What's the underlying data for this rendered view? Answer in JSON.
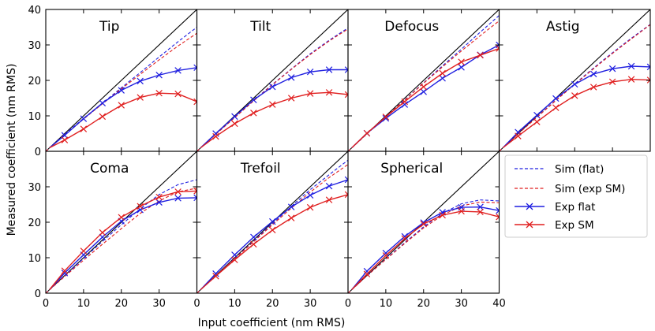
{
  "figure": {
    "xlabel": "Input coefficient (nm RMS)",
    "ylabel": "Measured coefficient (nm RMS)"
  },
  "legend": {
    "placement": "lower-right",
    "entries": [
      {
        "key": "sim_flat",
        "label": "Sim (flat)",
        "color": "#1f1fe0",
        "style": "dashed"
      },
      {
        "key": "sim_sm",
        "label": "Sim (exp SM)",
        "color": "#e01f1f",
        "style": "dashed"
      },
      {
        "key": "exp_flat",
        "label": "Exp flat",
        "color": "#1f1fe0",
        "style": "solid-x"
      },
      {
        "key": "exp_sm",
        "label": "Exp SM",
        "color": "#e01f1f",
        "style": "solid-x"
      }
    ]
  },
  "colors": {
    "blue": "#1f1fe0",
    "red": "#e01f1f",
    "ideal": "#000000"
  },
  "chart_data": [
    {
      "type": "line",
      "title": "Tip",
      "xlim": [
        0,
        40
      ],
      "ylim": [
        0,
        40
      ],
      "xticks": [
        0,
        10,
        20,
        30
      ],
      "yticks": [
        0,
        10,
        20,
        30,
        40
      ],
      "show_xticklabels": false,
      "show_yticklabels": true,
      "series": [
        {
          "name": "Sim (flat)",
          "key": "sim_flat",
          "x": [
            0,
            5,
            10,
            15,
            20,
            25,
            30,
            35,
            40
          ],
          "y": [
            0,
            4.8,
            9.3,
            13.6,
            17.9,
            22.2,
            26.6,
            30.9,
            35.0
          ]
        },
        {
          "name": "Sim (exp SM)",
          "key": "sim_sm",
          "x": [
            0,
            5,
            10,
            15,
            20,
            25,
            30,
            35,
            40
          ],
          "y": [
            0,
            4.6,
            9.1,
            13.4,
            17.6,
            21.7,
            25.8,
            29.7,
            33.3
          ]
        },
        {
          "name": "Exp flat",
          "key": "exp_flat",
          "x": [
            1,
            5,
            10,
            15,
            20,
            25,
            30,
            35,
            40
          ],
          "y": [
            1,
            4.5,
            9.2,
            13.6,
            17.2,
            19.8,
            21.5,
            22.8,
            23.6
          ]
        },
        {
          "name": "Exp SM",
          "key": "exp_sm",
          "x": [
            1,
            5,
            10,
            15,
            20,
            25,
            30,
            35,
            40
          ],
          "y": [
            1,
            3.2,
            6.3,
            9.8,
            13.0,
            15.2,
            16.4,
            16.2,
            14.0
          ]
        }
      ]
    },
    {
      "type": "line",
      "title": "Tilt",
      "xlim": [
        0,
        40
      ],
      "ylim": [
        0,
        40
      ],
      "xticks": [
        0,
        10,
        20,
        30
      ],
      "yticks": [
        0,
        10,
        20,
        30,
        40
      ],
      "show_xticklabels": false,
      "show_yticklabels": false,
      "series": [
        {
          "name": "Sim (flat)",
          "key": "sim_flat",
          "x": [
            0,
            5,
            10,
            15,
            20,
            25,
            30,
            35,
            40
          ],
          "y": [
            0,
            4.9,
            9.6,
            14.3,
            18.9,
            23.2,
            27.5,
            31.3,
            34.8
          ]
        },
        {
          "name": "Sim (exp SM)",
          "key": "sim_sm",
          "x": [
            0,
            5,
            10,
            15,
            20,
            25,
            30,
            35,
            40
          ],
          "y": [
            0,
            4.8,
            9.5,
            14.2,
            18.8,
            23.1,
            27.3,
            31.1,
            34.5
          ]
        },
        {
          "name": "Exp flat",
          "key": "exp_flat",
          "x": [
            1,
            5,
            10,
            15,
            20,
            25,
            30,
            35,
            40
          ],
          "y": [
            1,
            5.0,
            9.8,
            14.5,
            18.2,
            20.8,
            22.4,
            23.0,
            23.0
          ]
        },
        {
          "name": "Exp SM",
          "key": "exp_sm",
          "x": [
            1,
            5,
            10,
            15,
            20,
            25,
            30,
            35,
            40
          ],
          "y": [
            1,
            4.2,
            7.8,
            10.8,
            13.2,
            15.0,
            16.3,
            16.6,
            16.0
          ]
        }
      ]
    },
    {
      "type": "line",
      "title": "Defocus",
      "xlim": [
        0,
        40
      ],
      "ylim": [
        0,
        40
      ],
      "xticks": [
        0,
        10,
        20,
        30
      ],
      "yticks": [
        0,
        10,
        20,
        30,
        40
      ],
      "show_xticklabels": false,
      "show_yticklabels": false,
      "series": [
        {
          "name": "Sim (flat)",
          "key": "sim_flat",
          "x": [
            0,
            5,
            10,
            15,
            20,
            25,
            30,
            35,
            40
          ],
          "y": [
            0,
            4.9,
            9.8,
            14.5,
            19.3,
            24.1,
            28.8,
            33.6,
            38.3
          ]
        },
        {
          "name": "Sim (exp SM)",
          "key": "sim_sm",
          "x": [
            0,
            5,
            10,
            15,
            20,
            25,
            30,
            35,
            40
          ],
          "y": [
            0,
            4.9,
            9.8,
            14.4,
            19.2,
            23.8,
            28.3,
            32.6,
            36.8
          ]
        },
        {
          "name": "Exp flat",
          "key": "exp_flat",
          "x": [
            1,
            5,
            10,
            15,
            20,
            25,
            30,
            35,
            40
          ],
          "y": [
            1,
            5.1,
            9.3,
            13.2,
            16.8,
            20.6,
            23.7,
            27.2,
            30.0
          ]
        },
        {
          "name": "Exp SM",
          "key": "exp_sm",
          "x": [
            1,
            5,
            10,
            15,
            20,
            25,
            30,
            35,
            40
          ],
          "y": [
            1,
            5.1,
            9.7,
            14.0,
            18.2,
            22.0,
            25.2,
            27.1,
            29.0
          ]
        }
      ]
    },
    {
      "type": "line",
      "title": "Astig",
      "xlim": [
        0,
        40
      ],
      "ylim": [
        0,
        40
      ],
      "xticks": [
        0,
        10,
        20,
        30
      ],
      "yticks": [
        0,
        10,
        20,
        30,
        40
      ],
      "show_xticklabels": false,
      "show_yticklabels": false,
      "series": [
        {
          "name": "Sim (flat)",
          "key": "sim_flat",
          "x": [
            0,
            5,
            10,
            15,
            20,
            25,
            30,
            35,
            40
          ],
          "y": [
            0,
            4.9,
            9.7,
            14.4,
            19.0,
            23.5,
            27.8,
            31.9,
            35.8
          ]
        },
        {
          "name": "Sim (exp SM)",
          "key": "sim_sm",
          "x": [
            0,
            5,
            10,
            15,
            20,
            25,
            30,
            35,
            40
          ],
          "y": [
            0,
            4.9,
            9.6,
            14.3,
            18.9,
            23.3,
            27.6,
            31.7,
            35.7
          ]
        },
        {
          "name": "Exp flat",
          "key": "exp_flat",
          "x": [
            1,
            5,
            10,
            15,
            20,
            25,
            30,
            35,
            40
          ],
          "y": [
            1,
            5.4,
            10.2,
            14.9,
            18.9,
            21.8,
            23.3,
            24.0,
            23.8
          ]
        },
        {
          "name": "Exp SM",
          "key": "exp_sm",
          "x": [
            1,
            5,
            10,
            15,
            20,
            25,
            30,
            35,
            40
          ],
          "y": [
            1,
            4.3,
            8.3,
            12.3,
            15.7,
            18.1,
            19.6,
            20.3,
            20.1
          ]
        }
      ]
    },
    {
      "type": "line",
      "title": "Coma",
      "xlim": [
        0,
        40
      ],
      "ylim": [
        0,
        40
      ],
      "xticks": [
        0,
        10,
        20,
        30
      ],
      "yticks": [
        0,
        10,
        20,
        30
      ],
      "show_xticklabels": true,
      "show_yticklabels": true,
      "series": [
        {
          "name": "Sim (flat)",
          "key": "sim_flat",
          "x": [
            0,
            5,
            10,
            15,
            20,
            25,
            30,
            35,
            40
          ],
          "y": [
            0,
            4.9,
            9.8,
            14.6,
            19.3,
            23.8,
            27.8,
            30.6,
            32.0
          ]
        },
        {
          "name": "Sim (exp SM)",
          "key": "sim_sm",
          "x": [
            0,
            5,
            10,
            15,
            20,
            25,
            30,
            35,
            40
          ],
          "y": [
            0,
            4.7,
            9.3,
            13.8,
            18.2,
            22.5,
            26.0,
            28.6,
            29.6
          ]
        },
        {
          "name": "Exp flat",
          "key": "exp_flat",
          "x": [
            1,
            5,
            10,
            15,
            20,
            25,
            30,
            35,
            40
          ],
          "y": [
            1,
            5.7,
            10.8,
            15.8,
            20.3,
            23.5,
            25.6,
            26.8,
            26.9
          ]
        },
        {
          "name": "Exp SM",
          "key": "exp_sm",
          "x": [
            1,
            5,
            10,
            15,
            20,
            25,
            30,
            35,
            40
          ],
          "y": [
            1,
            6.3,
            11.9,
            17.1,
            21.4,
            24.5,
            27.1,
            28.6,
            28.8
          ]
        }
      ]
    },
    {
      "type": "line",
      "title": "Trefoil",
      "xlim": [
        0,
        40
      ],
      "ylim": [
        0,
        40
      ],
      "xticks": [
        0,
        10,
        20,
        30
      ],
      "yticks": [
        0,
        10,
        20,
        30
      ],
      "show_xticklabels": true,
      "show_yticklabels": false,
      "series": [
        {
          "name": "Sim (flat)",
          "key": "sim_flat",
          "x": [
            0,
            5,
            10,
            15,
            20,
            25,
            30,
            35,
            40
          ],
          "y": [
            0,
            4.9,
            9.8,
            14.7,
            19.6,
            24.5,
            29.2,
            33.4,
            37.5
          ]
        },
        {
          "name": "Sim (exp SM)",
          "key": "sim_sm",
          "x": [
            0,
            5,
            10,
            15,
            20,
            25,
            30,
            35,
            40
          ],
          "y": [
            0,
            4.9,
            9.7,
            14.5,
            19.3,
            24.0,
            28.5,
            32.6,
            36.3
          ]
        },
        {
          "name": "Exp flat",
          "key": "exp_flat",
          "x": [
            1,
            5,
            10,
            15,
            20,
            25,
            30,
            35,
            40
          ],
          "y": [
            1,
            5.5,
            10.8,
            15.8,
            20.2,
            24.3,
            27.6,
            30.2,
            32.0
          ]
        },
        {
          "name": "Exp SM",
          "key": "exp_sm",
          "x": [
            1,
            5,
            10,
            15,
            20,
            25,
            30,
            35,
            40
          ],
          "y": [
            1,
            4.8,
            9.4,
            13.8,
            17.8,
            21.2,
            24.2,
            26.3,
            27.8
          ]
        }
      ]
    },
    {
      "type": "line",
      "title": "Spherical",
      "xlim": [
        0,
        40
      ],
      "ylim": [
        0,
        40
      ],
      "xticks": [
        0,
        10,
        20,
        30,
        40
      ],
      "yticks": [
        0,
        10,
        20,
        30
      ],
      "show_xticklabels": true,
      "show_yticklabels": false,
      "series": [
        {
          "name": "Sim (flat)",
          "key": "sim_flat",
          "x": [
            0,
            5,
            10,
            15,
            20,
            25,
            30,
            35,
            40
          ],
          "y": [
            0,
            4.9,
            9.6,
            14.2,
            18.7,
            22.5,
            25.2,
            26.3,
            26.0
          ]
        },
        {
          "name": "Sim (exp SM)",
          "key": "sim_sm",
          "x": [
            0,
            5,
            10,
            15,
            20,
            25,
            30,
            35,
            40
          ],
          "y": [
            0,
            4.9,
            9.5,
            14.0,
            18.4,
            22.0,
            24.6,
            25.7,
            25.5
          ]
        },
        {
          "name": "Exp flat",
          "key": "exp_flat",
          "x": [
            1,
            5,
            10,
            15,
            20,
            25,
            30,
            35,
            40
          ],
          "y": [
            1,
            6.2,
            11.3,
            16.0,
            19.9,
            22.8,
            24.2,
            24.3,
            23.3
          ]
        },
        {
          "name": "Exp SM",
          "key": "exp_sm",
          "x": [
            1,
            5,
            10,
            15,
            20,
            25,
            30,
            35,
            40
          ],
          "y": [
            1,
            5.4,
            10.6,
            15.4,
            19.5,
            22.0,
            23.1,
            22.9,
            21.5
          ]
        }
      ]
    }
  ]
}
